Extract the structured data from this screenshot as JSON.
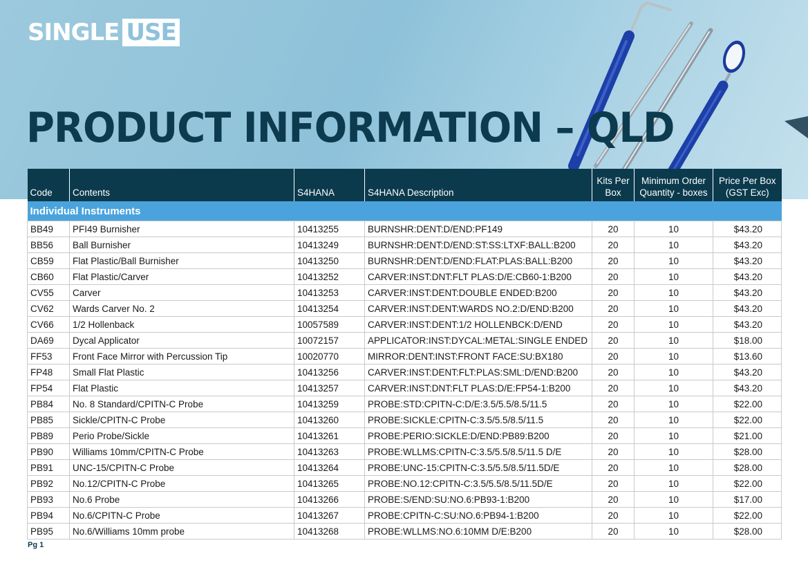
{
  "brand": {
    "single": "SINGLE",
    "use": "USE"
  },
  "title": "PRODUCT INFORMATION – QLD",
  "columns": {
    "code": "Code",
    "contents": "Contents",
    "s4hana": "S4HANA",
    "s4hana_desc": "S4HANA Description",
    "kits_line1": "Kits Per",
    "kits_line2": "Box",
    "moq_line1": "Minimum Order",
    "moq_line2": "Quantity - boxes",
    "price_line1": "Price Per Box",
    "price_line2": "(GST Exc)"
  },
  "section_title": "Individual Instruments",
  "rows": [
    {
      "code": "BB49",
      "contents": "PFI49 Burnisher",
      "s4hana": "10413255",
      "desc": "BURNSHR:DENT:D/END:PF149",
      "kits": "20",
      "moq": "10",
      "price": "$43.20"
    },
    {
      "code": "BB56",
      "contents": "Ball Burnisher",
      "s4hana": "10413249",
      "desc": "BURNSHR:DENT:D/END:ST:SS:LTXF:BALL:B200",
      "kits": "20",
      "moq": "10",
      "price": "$43.20"
    },
    {
      "code": "CB59",
      "contents": "Flat Plastic/Ball Burnisher",
      "s4hana": "10413250",
      "desc": "BURNSHR:DENT:D/END:FLAT:PLAS:BALL:B200",
      "kits": "20",
      "moq": "10",
      "price": "$43.20"
    },
    {
      "code": "CB60",
      "contents": "Flat Plastic/Carver",
      "s4hana": "10413252",
      "desc": "CARVER:INST:DNT:FLT PLAS:D/E:CB60-1:B200",
      "kits": "20",
      "moq": "10",
      "price": "$43.20"
    },
    {
      "code": "CV55",
      "contents": "Carver",
      "s4hana": "10413253",
      "desc": "CARVER:INST:DENT:DOUBLE ENDED:B200",
      "kits": "20",
      "moq": "10",
      "price": "$43.20"
    },
    {
      "code": "CV62",
      "contents": "Wards Carver No. 2",
      "s4hana": "10413254",
      "desc": "CARVER:INST:DENT:WARDS NO.2:D/END:B200",
      "kits": "20",
      "moq": "10",
      "price": "$43.20"
    },
    {
      "code": "CV66",
      "contents": "1/2 Hollenback",
      "s4hana": "10057589",
      "desc": "CARVER:INST:DENT:1/2 HOLLENBCK:D/END",
      "kits": "20",
      "moq": "10",
      "price": "$43.20"
    },
    {
      "code": "DA69",
      "contents": "Dycal Applicator",
      "s4hana": "10072157",
      "desc": "APPLICATOR:INST:DYCAL:METAL:SINGLE ENDED",
      "kits": "20",
      "moq": "10",
      "price": "$18.00"
    },
    {
      "code": "FF53",
      "contents": "Front Face Mirror with Percussion Tip",
      "s4hana": "10020770",
      "desc": "MIRROR:DENT:INST:FRONT FACE:SU:BX180",
      "kits": "20",
      "moq": "10",
      "price": "$13.60"
    },
    {
      "code": "FP48",
      "contents": "Small Flat Plastic",
      "s4hana": "10413256",
      "desc": "CARVER:INST:DENT:FLT:PLAS:SML:D/END:B200",
      "kits": "20",
      "moq": "10",
      "price": "$43.20"
    },
    {
      "code": "FP54",
      "contents": "Flat Plastic",
      "s4hana": "10413257",
      "desc": "CARVER:INST:DNT:FLT PLAS:D/E:FP54-1:B200",
      "kits": "20",
      "moq": "10",
      "price": "$43.20"
    },
    {
      "code": "PB84",
      "contents": "No. 8 Standard/CPITN-C Probe",
      "s4hana": "10413259",
      "desc": "PROBE:STD:CPITN-C:D/E:3.5/5.5/8.5/11.5",
      "kits": "20",
      "moq": "10",
      "price": "$22.00"
    },
    {
      "code": "PB85",
      "contents": "Sickle/CPITN-C Probe",
      "s4hana": "10413260",
      "desc": "PROBE:SICKLE:CPITN-C:3.5/5.5/8.5/11.5",
      "kits": "20",
      "moq": "10",
      "price": "$22.00"
    },
    {
      "code": "PB89",
      "contents": "Perio Probe/Sickle",
      "s4hana": "10413261",
      "desc": "PROBE:PERIO:SICKLE:D/END:PB89:B200",
      "kits": "20",
      "moq": "10",
      "price": "$21.00"
    },
    {
      "code": "PB90",
      "contents": "Williams 10mm/CPITN-C Probe",
      "s4hana": "10413263",
      "desc": "PROBE:WLLMS:CPITN-C:3.5/5.5/8.5/11.5 D/E",
      "kits": "20",
      "moq": "10",
      "price": "$28.00"
    },
    {
      "code": "PB91",
      "contents": "UNC-15/CPITN-C Probe",
      "s4hana": "10413264",
      "desc": "PROBE:UNC-15:CPITN-C:3.5/5.5/8.5/11.5D/E",
      "kits": "20",
      "moq": "10",
      "price": "$28.00"
    },
    {
      "code": "PB92",
      "contents": "No.12/CPITN-C Probe",
      "s4hana": "10413265",
      "desc": "PROBE:NO.12:CPITN-C:3.5/5.5/8.5/11.5D/E",
      "kits": "20",
      "moq": "10",
      "price": "$22.00"
    },
    {
      "code": "PB93",
      "contents": "No.6 Probe",
      "s4hana": "10413266",
      "desc": "PROBE:S/END:SU:NO.6:PB93-1:B200",
      "kits": "20",
      "moq": "10",
      "price": "$17.00"
    },
    {
      "code": "PB94",
      "contents": "No.6/CPITN-C Probe",
      "s4hana": "10413267",
      "desc": "PROBE:CPITN-C:SU:NO.6:PB94-1:B200",
      "kits": "20",
      "moq": "10",
      "price": "$22.00"
    },
    {
      "code": "PB95",
      "contents": "No.6/Williams 10mm probe",
      "s4hana": "10413268",
      "desc": "PROBE:WLLMS:NO.6:10MM D/E:B200",
      "kits": "20",
      "moq": "10",
      "price": "$28.00"
    }
  ],
  "footer": {
    "page": "Pg 1"
  }
}
